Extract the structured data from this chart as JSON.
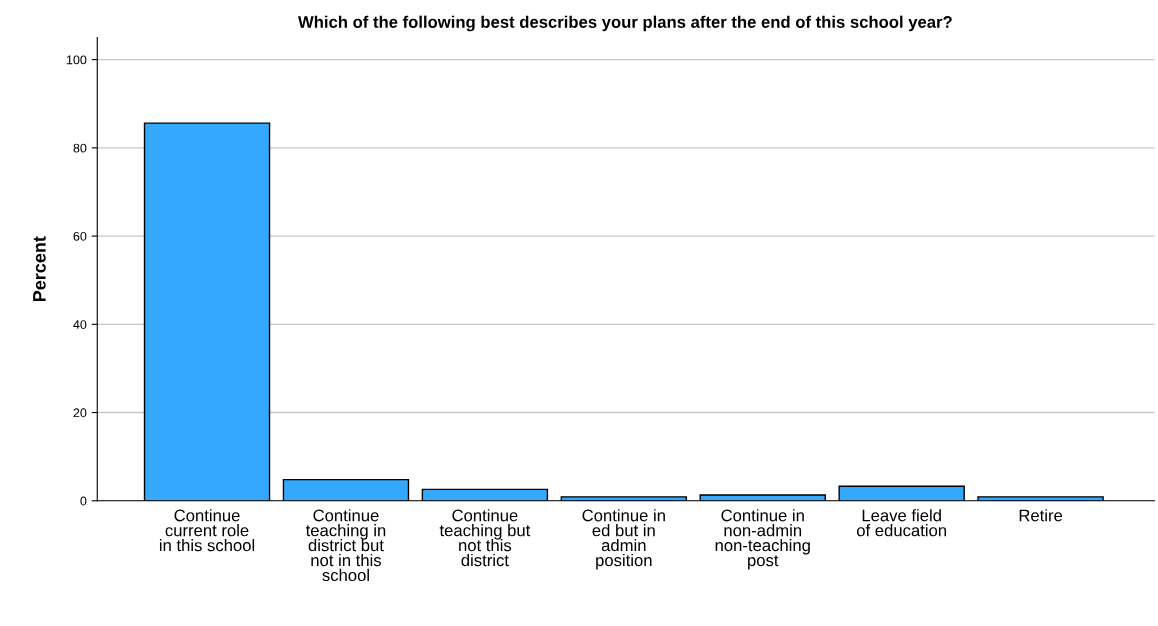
{
  "chart_data": {
    "type": "bar",
    "title": "Which of the following best describes your plans after the end of this school year?",
    "ylabel": "Percent",
    "categories": [
      "Continue\ncurrent role\nin this school",
      "Continue\nteaching in\ndistrict but\nnot in this\nschool",
      "Continue\nteaching but\nnot this\ndistrict",
      "Continue in\ned but in\nadmin\nposition",
      "Continue in\nnon-admin\nnon-teaching\npost",
      "Leave field\nof education",
      "Retire"
    ],
    "values": [
      85.6,
      4.8,
      2.6,
      0.9,
      1.3,
      3.3,
      0.9
    ],
    "color": "#33a8fc",
    "ylim": [
      0,
      105
    ],
    "yticks": [
      0,
      20,
      40,
      60,
      80,
      100
    ],
    "grid": "y"
  }
}
